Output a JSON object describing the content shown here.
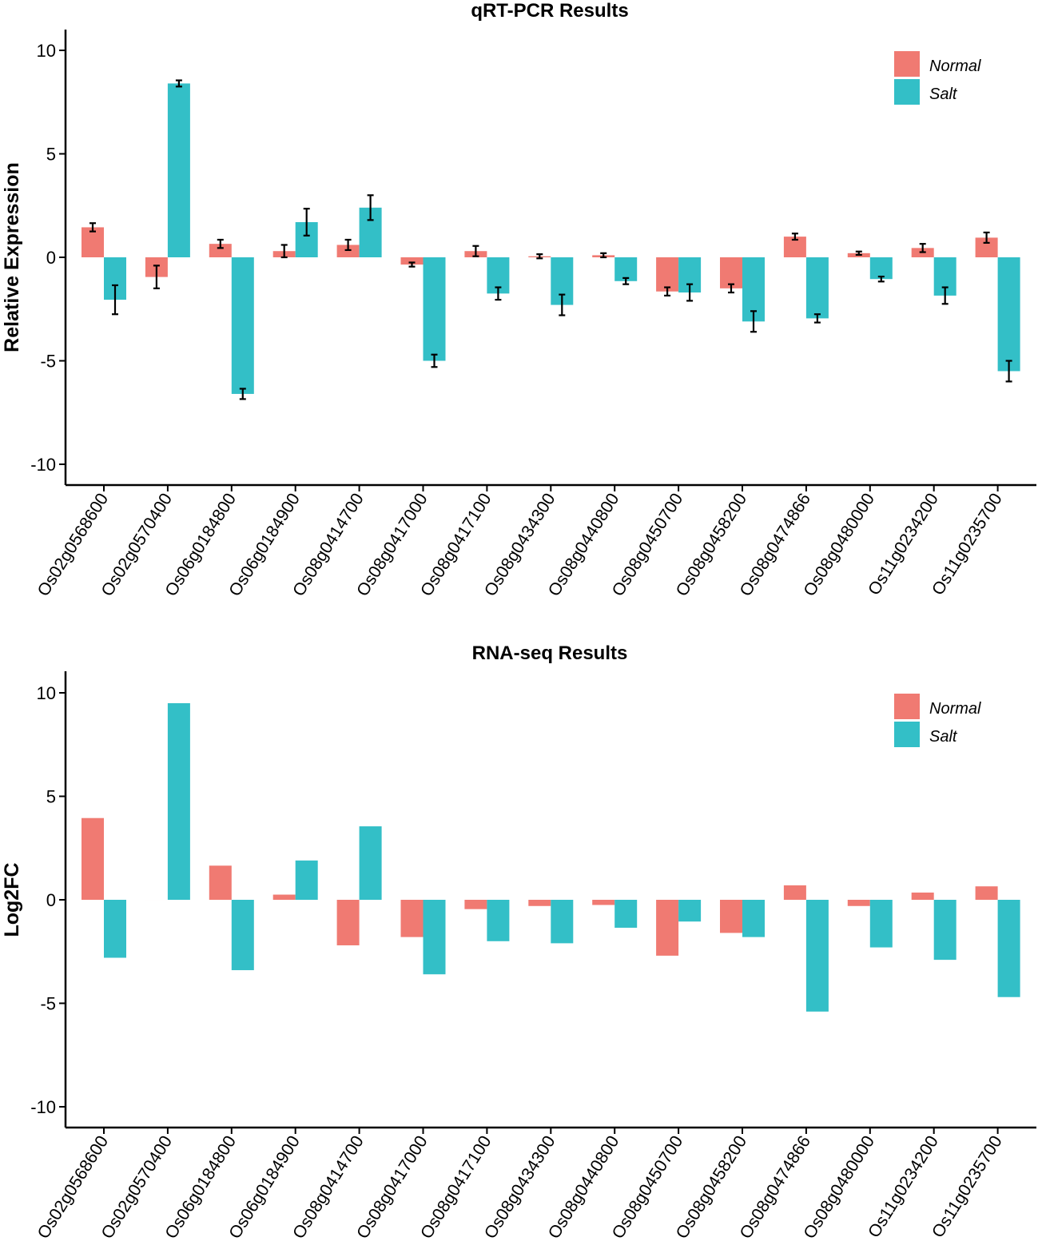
{
  "colors": {
    "normal": "#F07A72",
    "salt": "#33BFC7",
    "axis": "#000000"
  },
  "chart_data": [
    {
      "type": "bar",
      "title": "qRT-PCR Results",
      "xlabel": "",
      "ylabel": "Relative Expression",
      "ylim": [
        -11,
        10.5
      ],
      "yticks": [
        "10",
        "5",
        "0",
        "-5",
        "-10"
      ],
      "ytick_values": [
        10,
        5,
        0,
        -5,
        -10
      ],
      "categories": [
        "Os02g0568600",
        "Os02g0570400",
        "Os06g0184800",
        "Os06g0184900",
        "Os08g0414700",
        "Os08g0417000",
        "Os08g0417100",
        "Os08g0434300",
        "Os08g0440800",
        "Os08g0450700",
        "Os08g0458200",
        "Os08g0474866",
        "Os08g0480000",
        "Os11g0234200",
        "Os11g0235700"
      ],
      "series": [
        {
          "name": "Normal",
          "values": [
            1.45,
            -0.95,
            0.65,
            0.3,
            0.6,
            -0.35,
            0.3,
            0.05,
            0.1,
            -1.65,
            -1.5,
            1.0,
            0.2,
            0.45,
            0.95
          ],
          "errors": [
            0.2,
            0.55,
            0.2,
            0.3,
            0.25,
            0.1,
            0.25,
            0.1,
            0.1,
            0.2,
            0.2,
            0.15,
            0.08,
            0.2,
            0.25
          ]
        },
        {
          "name": "Salt",
          "values": [
            -2.05,
            8.4,
            -6.6,
            1.7,
            2.4,
            -5.0,
            -1.75,
            -2.3,
            -1.15,
            -1.7,
            -3.1,
            -2.95,
            -1.05,
            -1.85,
            -5.5
          ],
          "errors": [
            0.7,
            0.15,
            0.25,
            0.65,
            0.6,
            0.3,
            0.3,
            0.5,
            0.15,
            0.4,
            0.5,
            0.2,
            0.12,
            0.4,
            0.5
          ]
        }
      ],
      "legend": {
        "position": "top-right",
        "entries": [
          "Normal",
          "Salt"
        ]
      }
    },
    {
      "type": "bar",
      "title": "RNA-seq Results",
      "xlabel": "",
      "ylabel": "Log2FC",
      "ylim": [
        -11,
        10.5
      ],
      "yticks": [
        "10",
        "5",
        "0",
        "-5",
        "-10"
      ],
      "ytick_values": [
        10,
        5,
        0,
        -5,
        -10
      ],
      "categories": [
        "Os02g0568600",
        "Os02g0570400",
        "Os06g0184800",
        "Os06g0184900",
        "Os08g0414700",
        "Os08g0417000",
        "Os08g0417100",
        "Os08g0434300",
        "Os08g0440800",
        "Os08g0450700",
        "Os08g0458200",
        "Os08g0474866",
        "Os08g0480000",
        "Os11g0234200",
        "Os11g0235700"
      ],
      "series": [
        {
          "name": "Normal",
          "values": [
            3.95,
            0.0,
            1.65,
            0.25,
            -2.2,
            -1.8,
            -0.45,
            -0.3,
            -0.25,
            -2.7,
            -1.6,
            0.7,
            -0.3,
            0.35,
            0.65
          ]
        },
        {
          "name": "Salt",
          "values": [
            -2.8,
            9.5,
            -3.4,
            1.9,
            3.55,
            -3.6,
            -2.0,
            -2.1,
            -1.35,
            -1.05,
            -1.8,
            -5.4,
            -2.3,
            -2.9,
            -4.7
          ]
        }
      ],
      "legend": {
        "position": "top-right",
        "entries": [
          "Normal",
          "Salt"
        ]
      }
    }
  ]
}
